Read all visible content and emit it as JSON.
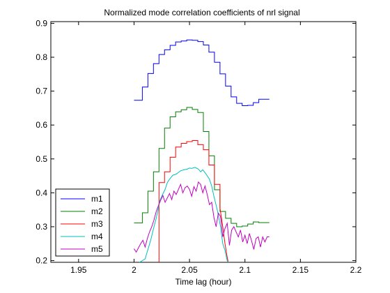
{
  "chart_data": {
    "type": "line",
    "title": "Normalized mode correlation coefficients of nrl signal",
    "xlabel": "Time lag (hour)",
    "ylabel": "",
    "xlim": [
      1.925,
      2.2
    ],
    "ylim": [
      0.195,
      0.905
    ],
    "xticks": [
      1.95,
      2,
      2.05,
      2.1,
      2.15,
      2.2
    ],
    "xtick_labels": [
      "1.95",
      "2",
      "2.05",
      "2.1",
      "2.15",
      "2.2"
    ],
    "yticks": [
      0.2,
      0.3,
      0.4,
      0.5,
      0.6,
      0.7,
      0.8,
      0.9
    ],
    "ytick_labels": [
      "0.2",
      "0.3",
      "0.4",
      "0.5",
      "0.6",
      "0.7",
      "0.8",
      "0.9"
    ],
    "grid": false,
    "legend_position": "bottom-left",
    "series": [
      {
        "name": "m1",
        "color": "#0000ff",
        "x": [
          2.0,
          2.0075,
          2.0075,
          2.0125,
          2.0125,
          2.0175,
          2.0175,
          2.0225,
          2.0225,
          2.0275,
          2.0275,
          2.0325,
          2.0325,
          2.0375,
          2.0375,
          2.0425,
          2.0425,
          2.0475,
          2.0475,
          2.0525,
          2.0525,
          2.0575,
          2.0575,
          2.0625,
          2.0625,
          2.0675,
          2.0675,
          2.0725,
          2.0725,
          2.0775,
          2.0775,
          2.0825,
          2.0825,
          2.0875,
          2.0875,
          2.0925,
          2.0925,
          2.0975,
          2.0975,
          2.1025,
          2.1025,
          2.1075,
          2.1075,
          2.1125,
          2.1125,
          2.1175,
          2.1175,
          2.122
        ],
        "y": [
          0.673,
          0.673,
          0.712,
          0.712,
          0.752,
          0.752,
          0.781,
          0.781,
          0.808,
          0.808,
          0.822,
          0.822,
          0.835,
          0.835,
          0.845,
          0.845,
          0.848,
          0.848,
          0.851,
          0.851,
          0.85,
          0.85,
          0.846,
          0.846,
          0.836,
          0.836,
          0.815,
          0.815,
          0.785,
          0.785,
          0.751,
          0.751,
          0.715,
          0.715,
          0.683,
          0.683,
          0.664,
          0.664,
          0.657,
          0.657,
          0.658,
          0.658,
          0.666,
          0.666,
          0.676,
          0.676,
          0.676,
          0.676
        ]
      },
      {
        "name": "m2",
        "color": "#008000",
        "x": [
          2.0,
          2.0075,
          2.0075,
          2.0125,
          2.0125,
          2.0175,
          2.0175,
          2.0225,
          2.0225,
          2.0275,
          2.0275,
          2.0325,
          2.0325,
          2.0375,
          2.0375,
          2.0425,
          2.0425,
          2.0475,
          2.0475,
          2.0525,
          2.0525,
          2.0575,
          2.0575,
          2.0625,
          2.0625,
          2.0675,
          2.0675,
          2.0725,
          2.0725,
          2.0775,
          2.0775,
          2.0825,
          2.0825,
          2.0875,
          2.0875,
          2.0925,
          2.0925,
          2.0975,
          2.0975,
          2.1025,
          2.1025,
          2.1075,
          2.1075,
          2.1125,
          2.1125,
          2.1175,
          2.1175,
          2.122
        ],
        "y": [
          0.311,
          0.311,
          0.341,
          0.341,
          0.405,
          0.405,
          0.462,
          0.462,
          0.531,
          0.531,
          0.591,
          0.591,
          0.624,
          0.624,
          0.639,
          0.639,
          0.645,
          0.645,
          0.652,
          0.652,
          0.646,
          0.646,
          0.637,
          0.637,
          0.581,
          0.581,
          0.509,
          0.509,
          0.409,
          0.409,
          0.345,
          0.345,
          0.325,
          0.325,
          0.31,
          0.31,
          0.3,
          0.3,
          0.302,
          0.302,
          0.308,
          0.308,
          0.314,
          0.314,
          0.312,
          0.312,
          0.312,
          0.312
        ]
      },
      {
        "name": "m3",
        "color": "#ff0000",
        "x": [
          2.0225,
          2.0225,
          2.0275,
          2.0275,
          2.0325,
          2.0325,
          2.0375,
          2.0375,
          2.0425,
          2.0425,
          2.0475,
          2.0475,
          2.0525,
          2.0525,
          2.0575,
          2.0575,
          2.0625,
          2.0625,
          2.0675,
          2.0675,
          2.0725,
          2.0725,
          2.0775,
          2.0775,
          2.08,
          2.082,
          2.084,
          2.085
        ],
        "y": [
          0.195,
          0.43,
          0.43,
          0.462,
          0.462,
          0.505,
          0.505,
          0.535,
          0.535,
          0.546,
          0.546,
          0.551,
          0.551,
          0.554,
          0.554,
          0.542,
          0.542,
          0.527,
          0.527,
          0.482,
          0.482,
          0.425,
          0.425,
          0.355,
          0.3,
          0.25,
          0.21,
          0.195
        ]
      },
      {
        "name": "m4",
        "color": "#00bfbf",
        "x": [
          2.0,
          2.005,
          2.01,
          2.015,
          2.018,
          2.02,
          2.022,
          2.023,
          2.025,
          2.028,
          2.03,
          2.032,
          2.035,
          2.038,
          2.04,
          2.042,
          2.045,
          2.048,
          2.05,
          2.052,
          2.055,
          2.058,
          2.06,
          2.062,
          2.065,
          2.068,
          2.07,
          2.072,
          2.075,
          2.078,
          2.08,
          2.082,
          2.084,
          2.086
        ],
        "y": [
          0.18,
          0.195,
          0.205,
          0.26,
          0.3,
          0.325,
          0.355,
          0.375,
          0.39,
          0.41,
          0.43,
          0.44,
          0.452,
          0.455,
          0.46,
          0.465,
          0.468,
          0.47,
          0.473,
          0.472,
          0.475,
          0.47,
          0.462,
          0.468,
          0.455,
          0.44,
          0.42,
          0.39,
          0.35,
          0.3,
          0.25,
          0.23,
          0.2,
          0.19
        ]
      },
      {
        "name": "m5",
        "color": "#bf00bf",
        "x": [
          2.0,
          2.002,
          2.004,
          2.006,
          2.008,
          2.01,
          2.012,
          2.014,
          2.016,
          2.018,
          2.02,
          2.022,
          2.024,
          2.026,
          2.028,
          2.03,
          2.032,
          2.034,
          2.036,
          2.038,
          2.04,
          2.042,
          2.044,
          2.046,
          2.048,
          2.05,
          2.052,
          2.054,
          2.056,
          2.058,
          2.06,
          2.062,
          2.064,
          2.066,
          2.068,
          2.07,
          2.072,
          2.074,
          2.076,
          2.078,
          2.08,
          2.082,
          2.084,
          2.086,
          2.088,
          2.09,
          2.092,
          2.094,
          2.096,
          2.098,
          2.1,
          2.102,
          2.104,
          2.106,
          2.108,
          2.11,
          2.112,
          2.114,
          2.116,
          2.118,
          2.12,
          2.122
        ],
        "y": [
          0.235,
          0.225,
          0.238,
          0.25,
          0.26,
          0.24,
          0.265,
          0.285,
          0.3,
          0.32,
          0.345,
          0.362,
          0.378,
          0.392,
          0.372,
          0.385,
          0.398,
          0.38,
          0.405,
          0.395,
          0.41,
          0.425,
          0.4,
          0.415,
          0.42,
          0.41,
          0.39,
          0.418,
          0.405,
          0.432,
          0.425,
          0.4,
          0.42,
          0.395,
          0.365,
          0.372,
          0.328,
          0.3,
          0.34,
          0.33,
          0.27,
          0.295,
          0.31,
          0.245,
          0.29,
          0.3,
          0.285,
          0.27,
          0.29,
          0.255,
          0.275,
          0.25,
          0.28,
          0.258,
          0.233,
          0.265,
          0.27,
          0.24,
          0.27,
          0.255,
          0.27,
          0.27
        ]
      }
    ]
  }
}
